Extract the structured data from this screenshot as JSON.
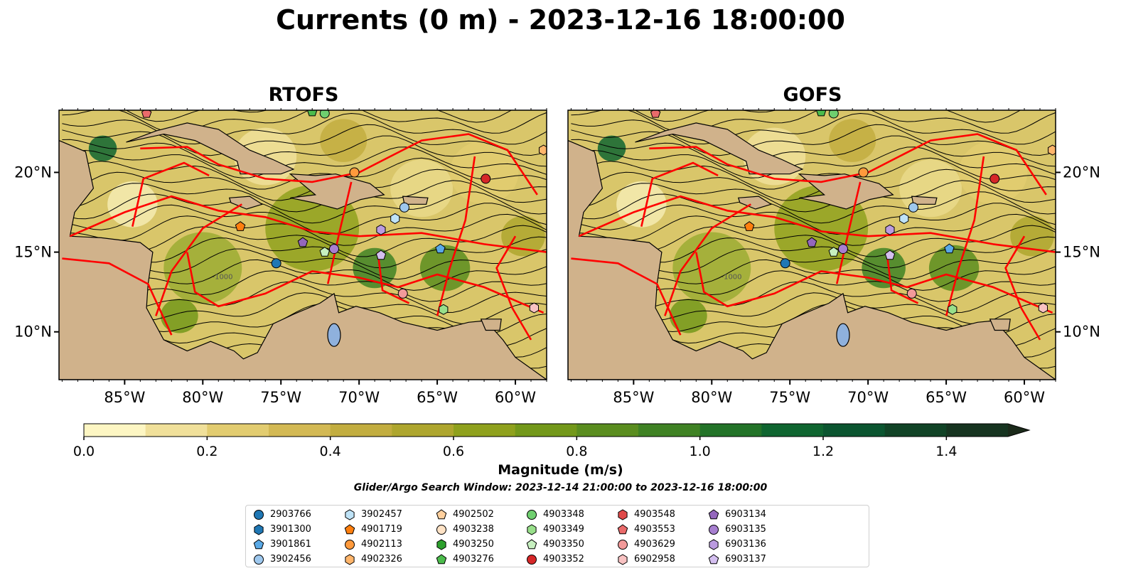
{
  "title": "Currents (0 m) - 2023-12-16 18:00:00",
  "panels": [
    {
      "title": "RTOFS"
    },
    {
      "title": "GOFS"
    }
  ],
  "map": {
    "lon_range": [
      -89.2,
      -58.0
    ],
    "lat_range": [
      7.0,
      23.9
    ],
    "lon_ticks": [
      "85°W",
      "80°W",
      "75°W",
      "70°W",
      "65°W",
      "60°W"
    ],
    "lon_tick_values": [
      -85,
      -80,
      -75,
      -70,
      -65,
      -60
    ],
    "lat_ticks": [
      "20°N",
      "15°N",
      "10°N"
    ],
    "lat_tick_values": [
      20,
      15,
      10
    ],
    "land_color": "#d0b28b",
    "track_color": "#ff0000",
    "contour_label": "-1000"
  },
  "colorbar": {
    "label": "Magnitude (m/s)",
    "tick_labels": [
      "0.0",
      "0.2",
      "0.4",
      "0.6",
      "0.8",
      "1.0",
      "1.2",
      "1.4"
    ],
    "tick_values": [
      0.0,
      0.2,
      0.4,
      0.6,
      0.8,
      1.0,
      1.2,
      1.4
    ],
    "range": [
      0.0,
      1.5
    ],
    "extend": "max",
    "colors": [
      "#fdf6c3",
      "#f0e09a",
      "#e2cc70",
      "#d3b954",
      "#c2ad3f",
      "#aea62e",
      "#8fa11d",
      "#73981a",
      "#5a8d1f",
      "#3f8224",
      "#237328",
      "#0f6530",
      "#0b5530",
      "#114326",
      "#163420",
      "#1b2a1a"
    ]
  },
  "search_window": "Glider/Argo Search Window: 2023-12-14 21:00:00 to 2023-12-16 18:00:00",
  "legend": {
    "items": [
      {
        "label": "2903766",
        "color": "#1f77b4",
        "marker": "circle"
      },
      {
        "label": "3901300",
        "color": "#1f77b4",
        "marker": "hexagon"
      },
      {
        "label": "3901861",
        "color": "#5aa9e6",
        "marker": "pentagon"
      },
      {
        "label": "3902456",
        "color": "#9ec8ee",
        "marker": "circle"
      },
      {
        "label": "3902457",
        "color": "#bfe3f7",
        "marker": "hexagon"
      },
      {
        "label": "4901719",
        "color": "#ff7f0e",
        "marker": "pentagon"
      },
      {
        "label": "4902113",
        "color": "#ff9a3c",
        "marker": "circle"
      },
      {
        "label": "4902326",
        "color": "#ffb56b",
        "marker": "hexagon"
      },
      {
        "label": "4902502",
        "color": "#ffd09e",
        "marker": "pentagon"
      },
      {
        "label": "4903238",
        "color": "#ffe3c6",
        "marker": "circle"
      },
      {
        "label": "4903250",
        "color": "#2ca02c",
        "marker": "hexagon"
      },
      {
        "label": "4903276",
        "color": "#4cbc4c",
        "marker": "pentagon"
      },
      {
        "label": "4903348",
        "color": "#6fcf6f",
        "marker": "circle"
      },
      {
        "label": "4903349",
        "color": "#98df8a",
        "marker": "hexagon"
      },
      {
        "label": "4903350",
        "color": "#c7f0c0",
        "marker": "pentagon"
      },
      {
        "label": "4903352",
        "color": "#d62728",
        "marker": "circle"
      },
      {
        "label": "4903548",
        "color": "#e04a4a",
        "marker": "hexagon"
      },
      {
        "label": "4903553",
        "color": "#ea6b6b",
        "marker": "pentagon"
      },
      {
        "label": "4903629",
        "color": "#f29a9a",
        "marker": "circle"
      },
      {
        "label": "6902958",
        "color": "#f8c2c2",
        "marker": "hexagon"
      },
      {
        "label": "6903134",
        "color": "#9467bd",
        "marker": "pentagon"
      },
      {
        "label": "6903135",
        "color": "#a77fd0",
        "marker": "circle"
      },
      {
        "label": "6903136",
        "color": "#bb9be0",
        "marker": "hexagon"
      },
      {
        "label": "6903137",
        "color": "#d4bff0",
        "marker": "pentagon"
      }
    ]
  },
  "float_positions": [
    {
      "id": "2903766",
      "lon": -75.3,
      "lat": 14.3
    },
    {
      "id": "3901861",
      "lon": -64.8,
      "lat": 15.2
    },
    {
      "id": "3902456",
      "lon": -67.1,
      "lat": 17.8
    },
    {
      "id": "3902457",
      "lon": -67.7,
      "lat": 17.1
    },
    {
      "id": "4901719",
      "lon": -77.6,
      "lat": 16.6
    },
    {
      "id": "4902113",
      "lon": -70.3,
      "lat": 20.0
    },
    {
      "id": "4903276",
      "lon": -73.0,
      "lat": 23.8
    },
    {
      "id": "4903348",
      "lon": -72.2,
      "lat": 23.7
    },
    {
      "id": "4903349",
      "lon": -64.6,
      "lat": 11.4
    },
    {
      "id": "4903352",
      "lon": -61.9,
      "lat": 19.6
    },
    {
      "id": "4903553",
      "lon": -83.6,
      "lat": 23.7
    },
    {
      "id": "4903629",
      "lon": -67.2,
      "lat": 12.4
    },
    {
      "id": "6902958",
      "lon": -58.8,
      "lat": 11.5
    },
    {
      "id": "6903134",
      "lon": -73.6,
      "lat": 15.6
    },
    {
      "id": "6903135",
      "lon": -71.6,
      "lat": 15.2
    },
    {
      "id": "6903137",
      "lon": -68.6,
      "lat": 14.8
    },
    {
      "id": "4902326",
      "lon": -58.2,
      "lat": 21.4
    },
    {
      "id": "4903350",
      "lon": -72.2,
      "lat": 15.0
    },
    {
      "id": "6903136",
      "lon": -68.6,
      "lat": 16.4
    }
  ]
}
